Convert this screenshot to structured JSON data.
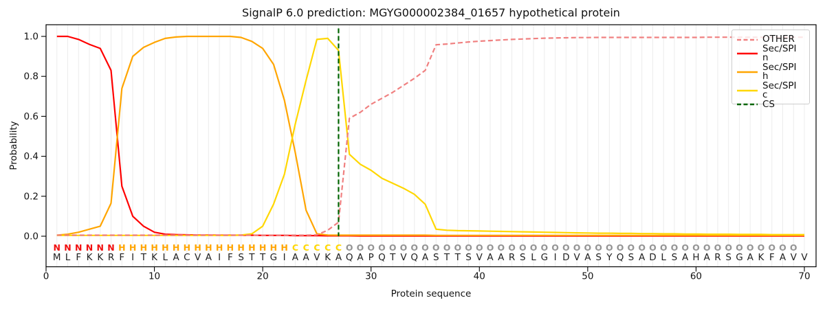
{
  "chart_data": {
    "type": "line",
    "title": "SignalP 6.0 prediction: MGYG000002384_01657 hypothetical protein",
    "xlabel": "Protein sequence",
    "ylabel": "Probability",
    "xticks": [
      0,
      10,
      20,
      30,
      40,
      50,
      60,
      70
    ],
    "yticks": [
      0.0,
      0.2,
      0.4,
      0.6,
      0.8,
      1.0
    ],
    "xlim": [
      0,
      71
    ],
    "ylim": [
      -0.155,
      1.06
    ],
    "grid": "vertical light-gray line at every residue 1-70",
    "x_range": [
      1,
      70
    ],
    "series": [
      {
        "name": "OTHER",
        "color": "#f08080",
        "style": "dashed",
        "values": [
          0.005,
          0.005,
          0.005,
          0.005,
          0.005,
          0.005,
          0.005,
          0.005,
          0.005,
          0.005,
          0.005,
          0.005,
          0.005,
          0.005,
          0.005,
          0.005,
          0.005,
          0.005,
          0.005,
          0.005,
          0.005,
          0.005,
          0.005,
          0.005,
          0.007,
          0.03,
          0.07,
          0.59,
          0.62,
          0.66,
          0.69,
          0.72,
          0.755,
          0.79,
          0.83,
          0.958,
          0.962,
          0.967,
          0.972,
          0.976,
          0.979,
          0.982,
          0.985,
          0.987,
          0.989,
          0.991,
          0.992,
          0.993,
          0.994,
          0.994,
          0.995,
          0.995,
          0.995,
          0.995,
          0.995,
          0.995,
          0.995,
          0.995,
          0.995,
          0.995,
          0.996,
          0.996,
          0.996,
          0.996,
          0.996,
          0.996,
          0.996,
          0.996,
          0.996,
          0.996
        ]
      },
      {
        "name": "Sec/SPI n",
        "color": "#ff0000",
        "style": "solid",
        "values": [
          1.0,
          1.0,
          0.985,
          0.96,
          0.94,
          0.83,
          0.25,
          0.1,
          0.05,
          0.02,
          0.01,
          0.008,
          0.007,
          0.006,
          0.006,
          0.005,
          0.005,
          0.005,
          0.005,
          0.004,
          0.004,
          0.004,
          0.003,
          0.003,
          0.003,
          0.002,
          0.002,
          0.002,
          0.001,
          0.001,
          0.001,
          0.001,
          0.001,
          0.001,
          0.001,
          0.001,
          0.001,
          0.001,
          0.001,
          0.001,
          0.001,
          0.001,
          0.001,
          0.001,
          0.001,
          0.001,
          0.001,
          0.001,
          0.001,
          0.001,
          0.001,
          0.001,
          0.001,
          0.001,
          0.001,
          0.001,
          0.001,
          0.001,
          0.001,
          0.001,
          0.001,
          0.001,
          0.001,
          0.001,
          0.001,
          0.001,
          0.001,
          0.001,
          0.001,
          0.001
        ]
      },
      {
        "name": "Sec/SPI h",
        "color": "#ffa500",
        "style": "solid",
        "values": [
          0.005,
          0.01,
          0.02,
          0.035,
          0.05,
          0.165,
          0.74,
          0.9,
          0.945,
          0.97,
          0.99,
          0.997,
          1.0,
          1.0,
          1.0,
          1.0,
          1.0,
          0.995,
          0.975,
          0.94,
          0.86,
          0.68,
          0.42,
          0.13,
          0.012,
          0.006,
          0.005,
          0.005,
          0.005,
          0.005,
          0.005,
          0.005,
          0.005,
          0.005,
          0.005,
          0.004,
          0.004,
          0.004,
          0.004,
          0.004,
          0.004,
          0.004,
          0.004,
          0.004,
          0.004,
          0.004,
          0.004,
          0.004,
          0.004,
          0.004,
          0.004,
          0.004,
          0.004,
          0.004,
          0.004,
          0.004,
          0.004,
          0.004,
          0.004,
          0.004,
          0.004,
          0.004,
          0.004,
          0.004,
          0.004,
          0.004,
          0.004,
          0.004,
          0.004,
          0.004
        ]
      },
      {
        "name": "Sec/SPI c",
        "color": "#ffd700",
        "style": "solid",
        "values": [
          0.004,
          0.004,
          0.004,
          0.004,
          0.004,
          0.004,
          0.004,
          0.004,
          0.004,
          0.004,
          0.004,
          0.004,
          0.004,
          0.004,
          0.004,
          0.004,
          0.004,
          0.006,
          0.012,
          0.05,
          0.16,
          0.31,
          0.56,
          0.78,
          0.985,
          0.99,
          0.93,
          0.41,
          0.36,
          0.33,
          0.29,
          0.265,
          0.24,
          0.21,
          0.16,
          0.035,
          0.03,
          0.028,
          0.027,
          0.026,
          0.025,
          0.024,
          0.023,
          0.022,
          0.021,
          0.02,
          0.019,
          0.018,
          0.017,
          0.016,
          0.015,
          0.015,
          0.014,
          0.014,
          0.013,
          0.013,
          0.012,
          0.012,
          0.011,
          0.011,
          0.01,
          0.01,
          0.01,
          0.009,
          0.009,
          0.009,
          0.008,
          0.008,
          0.008,
          0.008
        ]
      }
    ],
    "cs_line": {
      "label": "CS",
      "x": 27,
      "color": "#006400",
      "style": "dashed"
    },
    "sequence": "MLFKKRFITKLACVAIFSTTGIAAVKAQAPQTVQASTTSVAARSLGIDVASYQSADLSAHARSGAKFAVV",
    "regions": "NNNNNNHHHHHHHHHHHHHHHHCCCCCOOOOOOOOOOOOOOOOOOOOOOOOOOOOOOOOOOOOOOOOOO",
    "region_colors": {
      "N": "#f10e0e",
      "H": "#ffa500",
      "C": "#ffd700",
      "O": "#949494"
    },
    "sequence_color": "#212121",
    "legend": {
      "position": "upper right",
      "entries": [
        {
          "label": "OTHER",
          "color": "#f08080",
          "dash": true
        },
        {
          "label": "Sec/SPI n",
          "color": "#ff0000",
          "dash": false
        },
        {
          "label": "Sec/SPI h",
          "color": "#ffa500",
          "dash": false
        },
        {
          "label": "Sec/SPI c",
          "color": "#ffd700",
          "dash": false
        },
        {
          "label": "CS",
          "color": "#006400",
          "dash": true
        }
      ]
    }
  }
}
